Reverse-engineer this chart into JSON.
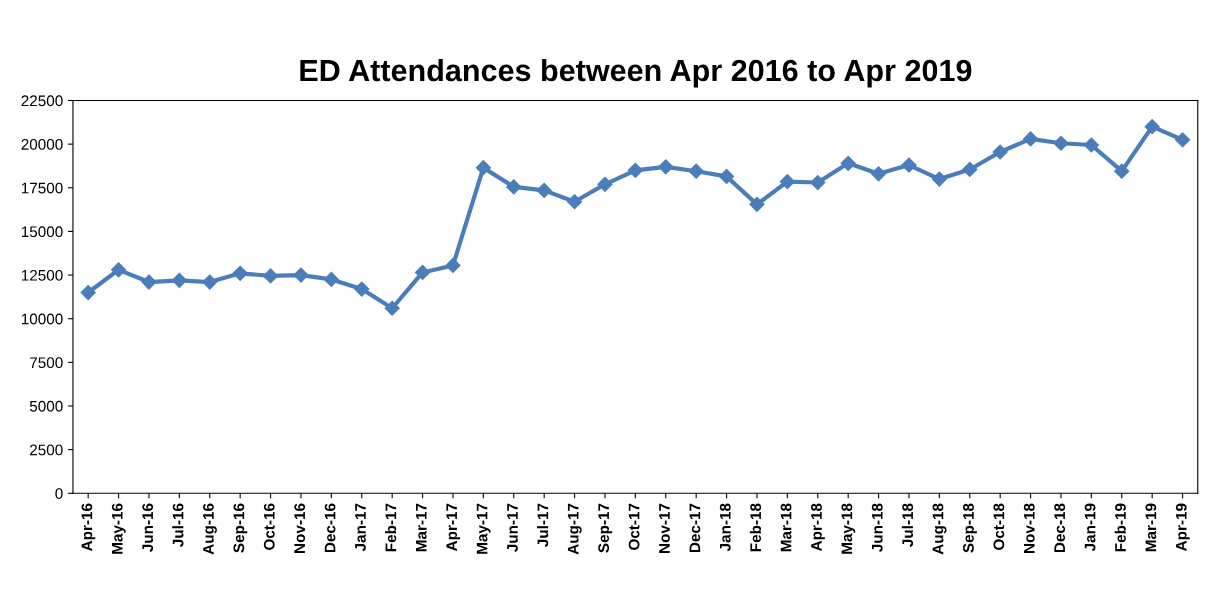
{
  "chart_data": {
    "type": "line",
    "title": "ED Attendances between Apr 2016 to Apr 2019",
    "categories": [
      "Apr-16",
      "May-16",
      "Jun-16",
      "Jul-16",
      "Aug-16",
      "Sep-16",
      "Oct-16",
      "Nov-16",
      "Dec-16",
      "Jan-17",
      "Feb-17",
      "Mar-17",
      "Apr-17",
      "May-17",
      "Jun-17",
      "Jul-17",
      "Aug-17",
      "Sep-17",
      "Oct-17",
      "Nov-17",
      "Dec-17",
      "Jan-18",
      "Feb-18",
      "Mar-18",
      "Apr-18",
      "May-18",
      "Jun-18",
      "Jul-18",
      "Aug-18",
      "Sep-18",
      "Oct-18",
      "Nov-18",
      "Dec-18",
      "Jan-19",
      "Feb-19",
      "Mar-19",
      "Apr-19"
    ],
    "series": [
      {
        "color": "#4a7ebb",
        "values": [
          11500,
          12800,
          12100,
          12200,
          12100,
          12600,
          12450,
          12500,
          12250,
          11700,
          10600,
          12650,
          13050,
          18650,
          17550,
          17350,
          16700,
          17700,
          18500,
          18700,
          18450,
          18150,
          16550,
          17850,
          17800,
          18900,
          18300,
          18800,
          18000,
          18550,
          19550,
          20300,
          20050,
          19950,
          18450,
          21000,
          20250
        ]
      }
    ],
    "ylim": [
      0,
      22500
    ],
    "yticks": [
      0,
      2500,
      5000,
      7500,
      10000,
      12500,
      15000,
      17500,
      20000,
      22500
    ],
    "marker": "diamond",
    "line_style": "solid",
    "grid": false,
    "legend": false
  }
}
